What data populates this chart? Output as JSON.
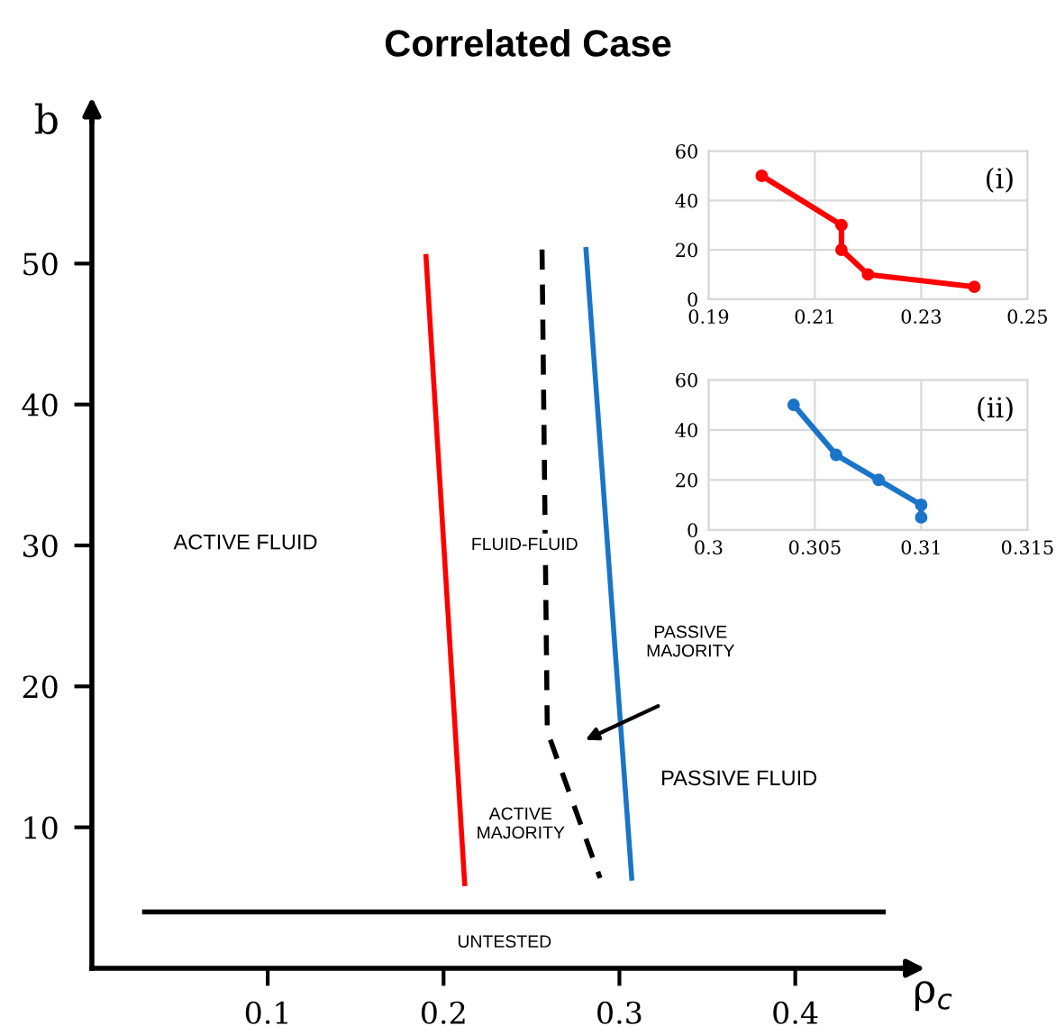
{
  "chart_data": [
    {
      "type": "line",
      "title": "Correlated Case",
      "xlabel": "ρ$_{c}$",
      "ylabel": "b",
      "xlim": [
        0,
        0.46
      ],
      "xticks": [
        0.1,
        0.2,
        0.3,
        0.4
      ],
      "ylim": [
        0,
        60
      ],
      "yticks": [
        10,
        20,
        30,
        40,
        50
      ],
      "grid": false,
      "marker": "none",
      "series": [
        {
          "x": [
            0.19,
            0.212
          ],
          "values": [
            50.5,
            6
          ],
          "color": "#ff0000",
          "line_style": "solid"
        },
        {
          "x": [
            0.256,
            0.259,
            0.289
          ],
          "values": [
            51,
            16.8,
            6.4
          ],
          "color": "#000000",
          "line_style": "dashed"
        },
        {
          "x": [
            0.281,
            0.307
          ],
          "values": [
            51,
            6.4
          ],
          "color": "#1a75c9",
          "line_style": "solid"
        },
        {
          "x": [
            0.03,
            0.45
          ],
          "values": [
            4,
            4
          ],
          "color": "#000000",
          "line_style": "solid"
        }
      ],
      "annotations": [
        "ACTIVE FLUID",
        "FLUID-FLUID",
        "ACTIVE\nMAJORITY",
        "PASSIVE FLUID",
        "PASSIVE\nMAJORITY",
        "UNTESTED"
      ]
    },
    {
      "type": "line",
      "xlim": [
        0.19,
        0.25
      ],
      "xticks": [
        0.19,
        0.21,
        0.23,
        0.25
      ],
      "ylim": [
        0,
        60
      ],
      "yticks": [
        0,
        20,
        40,
        60
      ],
      "grid": true,
      "marker": "circle",
      "series": [
        {
          "x": [
            0.2,
            0.215,
            0.215,
            0.22,
            0.24
          ],
          "values": [
            50,
            30,
            20,
            10,
            5
          ],
          "color": "#ff0000",
          "line_style": "solid"
        }
      ],
      "annotations": [
        "(i)"
      ]
    },
    {
      "type": "line",
      "xlim": [
        0.3,
        0.315
      ],
      "xticks": [
        0.3,
        0.305,
        0.31,
        0.315
      ],
      "ylim": [
        0,
        60
      ],
      "yticks": [
        0,
        20,
        40,
        60
      ],
      "grid": true,
      "marker": "circle",
      "series": [
        {
          "x": [
            0.304,
            0.306,
            0.308,
            0.31,
            0.31
          ],
          "values": [
            50,
            30,
            20,
            10,
            5
          ],
          "color": "#1a75c9",
          "line_style": "solid"
        }
      ],
      "annotations": [
        "(ii)"
      ]
    }
  ]
}
